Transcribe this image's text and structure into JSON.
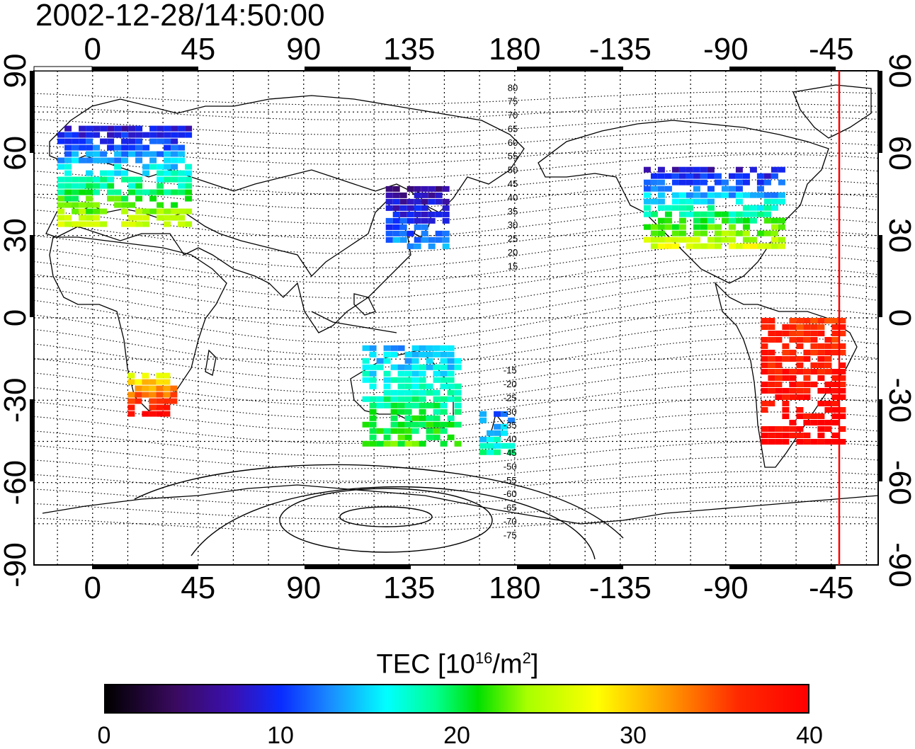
{
  "title": "2002-12-28/14:50:00",
  "top_axis_labels": [
    "0",
    "45",
    "90",
    "135",
    "180",
    "-135",
    "-90",
    "-45"
  ],
  "bottom_axis_labels": [
    "0",
    "45",
    "90",
    "135",
    "180",
    "-135",
    "-90",
    "-45"
  ],
  "left_axis_labels": [
    "90",
    "60",
    "30",
    "0",
    "-30",
    "-60",
    "-90"
  ],
  "right_axis_labels": [
    "90",
    "60",
    "30",
    "0",
    "-30",
    "-60",
    "-90"
  ],
  "north_contour_labels": [
    "80",
    "75",
    "70",
    "65",
    "60",
    "55",
    "50",
    "45",
    "40",
    "35",
    "30",
    "25",
    "20",
    "15"
  ],
  "south_contour_labels": [
    "-15",
    "-20",
    "-25",
    "-30",
    "-35",
    "-40",
    "-45",
    "-50",
    "-55",
    "-60",
    "-65",
    "-70",
    "-75"
  ],
  "colorbar": {
    "title": "TEC [10",
    "title_exp": "16",
    "title_unit": "/m",
    "title_unit_exp": "2",
    "title_close": "]",
    "ticks": [
      "0",
      "10",
      "20",
      "30",
      "40"
    ],
    "range": [
      0,
      40
    ],
    "colors": [
      "#000000",
      "#3a0a60",
      "#0a2cff",
      "#00ffff",
      "#00e000",
      "#ffff00",
      "#ff9a00",
      "#ff0000"
    ]
  },
  "colors": {
    "terminator_line": "#ff0000",
    "frame": "#000000"
  },
  "chart_data": {
    "type": "heatmap",
    "projection": "equirectangular",
    "longitude_range": [
      -25,
      335
    ],
    "latitude_range": [
      -90,
      90
    ],
    "grid": true,
    "marked_longitude": -47,
    "value_label": "TEC",
    "value_range": [
      0,
      40
    ],
    "regions": [
      {
        "name_hint": "Europe",
        "lon": [
          -15,
          40
        ],
        "lat": [
          35,
          70
        ],
        "tec": [
          8,
          26
        ]
      },
      {
        "name_hint": "Japan",
        "lon": [
          125,
          150
        ],
        "lat": [
          25,
          48
        ],
        "tec": [
          6,
          14
        ]
      },
      {
        "name_hint": "North America",
        "lon": [
          -125,
          -65
        ],
        "lat": [
          25,
          55
        ],
        "tec": [
          8,
          28
        ]
      },
      {
        "name_hint": "South America",
        "lon": [
          -75,
          -40
        ],
        "lat": [
          -45,
          0
        ],
        "tec": [
          36,
          40
        ]
      },
      {
        "name_hint": "Southern Africa",
        "lon": [
          15,
          35
        ],
        "lat": [
          -35,
          -20
        ],
        "tec": [
          28,
          40
        ]
      },
      {
        "name_hint": "Australia",
        "lon": [
          115,
          155
        ],
        "lat": [
          -45,
          -10
        ],
        "tec": [
          14,
          22
        ]
      },
      {
        "name_hint": "New Zealand",
        "lon": [
          165,
          180
        ],
        "lat": [
          -48,
          -34
        ],
        "tec": [
          12,
          18
        ]
      }
    ]
  }
}
